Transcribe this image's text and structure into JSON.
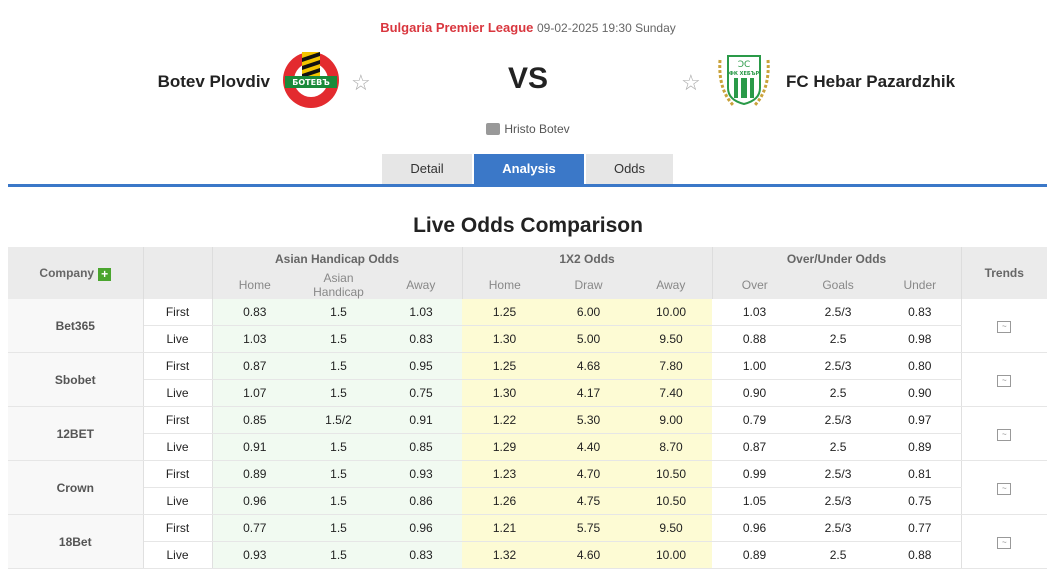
{
  "match": {
    "league": "Bulgaria Premier League",
    "datetime": "09-02-2025 19:30 Sunday",
    "home_team": "Botev Plovdiv",
    "away_team": "FC Hebar Pazardzhik",
    "vs": "VS",
    "venue": "Hristo Botev",
    "home_logo_text": "БОТЕВЪ",
    "away_logo_text": "ФК ХЕБЪР"
  },
  "tabs": [
    {
      "label": "Detail"
    },
    {
      "label": "Analysis",
      "active": true
    },
    {
      "label": "Odds"
    }
  ],
  "section_title": "Live Odds Comparison",
  "table": {
    "company_header": "Company",
    "groups": [
      "Asian Handicap Odds",
      "1X2 Odds",
      "Over/Under Odds"
    ],
    "trends_header": "Trends",
    "subheaders": [
      "Home",
      "Asian Handicap",
      "Away",
      "Home",
      "Draw",
      "Away",
      "Over",
      "Goals",
      "Under"
    ],
    "rows": [
      {
        "company": "Bet365",
        "first": [
          "0.83",
          "1.5",
          "1.03",
          "1.25",
          "6.00",
          "10.00",
          "1.03",
          "2.5/3",
          "0.83"
        ],
        "live": [
          "1.03",
          "1.5",
          "0.83",
          "1.30",
          "5.00",
          "9.50",
          "0.88",
          "2.5",
          "0.98"
        ]
      },
      {
        "company": "Sbobet",
        "first": [
          "0.87",
          "1.5",
          "0.95",
          "1.25",
          "4.68",
          "7.80",
          "1.00",
          "2.5/3",
          "0.80"
        ],
        "live": [
          "1.07",
          "1.5",
          "0.75",
          "1.30",
          "4.17",
          "7.40",
          "0.90",
          "2.5",
          "0.90"
        ]
      },
      {
        "company": "12BET",
        "first": [
          "0.85",
          "1.5/2",
          "0.91",
          "1.22",
          "5.30",
          "9.00",
          "0.79",
          "2.5/3",
          "0.97"
        ],
        "live": [
          "0.91",
          "1.5",
          "0.85",
          "1.29",
          "4.40",
          "8.70",
          "0.87",
          "2.5",
          "0.89"
        ]
      },
      {
        "company": "Crown",
        "first": [
          "0.89",
          "1.5",
          "0.93",
          "1.23",
          "4.70",
          "10.50",
          "0.99",
          "2.5/3",
          "0.81"
        ],
        "live": [
          "0.96",
          "1.5",
          "0.86",
          "1.26",
          "4.75",
          "10.50",
          "1.05",
          "2.5/3",
          "0.75"
        ]
      },
      {
        "company": "18Bet",
        "first": [
          "0.77",
          "1.5",
          "0.96",
          "1.21",
          "5.75",
          "9.50",
          "0.96",
          "2.5/3",
          "0.77"
        ],
        "live": [
          "0.93",
          "1.5",
          "0.83",
          "1.32",
          "4.60",
          "10.00",
          "0.89",
          "2.5",
          "0.88"
        ]
      }
    ],
    "first_label": "First",
    "live_label": "Live"
  },
  "colors": {
    "accent": "#3b78c8",
    "league": "#d9363e",
    "ah_bg": "#f1faf1",
    "x12_bg": "#fdfbd4"
  }
}
